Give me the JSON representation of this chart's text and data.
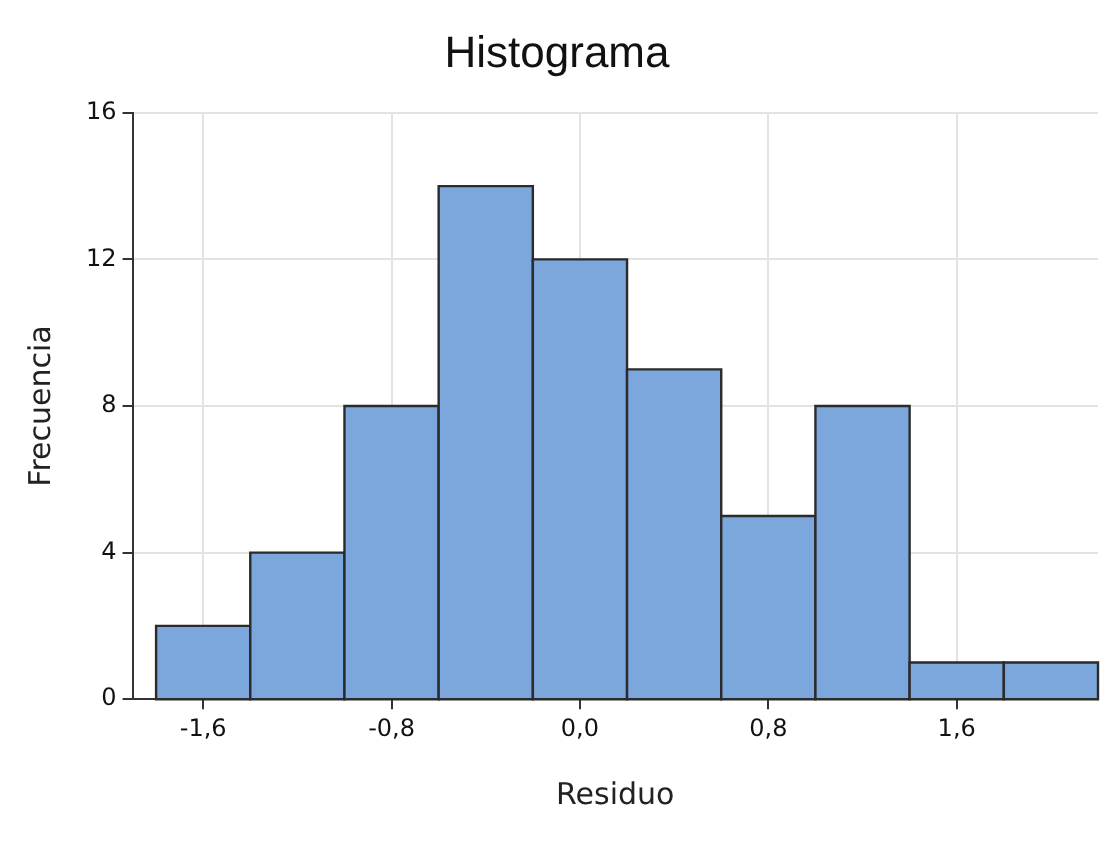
{
  "chart_data": {
    "type": "histogram",
    "title": "Histograma",
    "xlabel": "Residuo",
    "ylabel": "Frecuencia",
    "bins": [
      -1.8,
      -1.4,
      -1.0,
      -0.6,
      -0.2,
      0.2,
      0.6,
      1.0,
      1.4,
      1.8,
      2.2
    ],
    "values": [
      2,
      4,
      8,
      14,
      12,
      9,
      5,
      8,
      1,
      1
    ],
    "color": "#7ba7dc",
    "xlim": [
      -1.9,
      2.2
    ],
    "xticks": [
      {
        "value": -1.6,
        "label": "-1,6"
      },
      {
        "value": -0.8,
        "label": "-0,8"
      },
      {
        "value": 0,
        "label": "0,0"
      },
      {
        "value": 0.8,
        "label": "0,8"
      },
      {
        "value": 1.6,
        "label": "1,6"
      }
    ],
    "ylim": [
      0,
      16
    ],
    "yticks": [
      0,
      4,
      8,
      12,
      16
    ],
    "grid": true,
    "legend": false
  }
}
